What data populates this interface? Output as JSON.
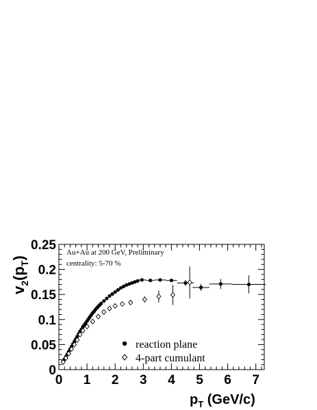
{
  "chart_data": {
    "type": "scatter",
    "xlabel": {
      "main": "p",
      "sub": "T",
      "rest": " (GeV/c)"
    },
    "ylabel": {
      "main": "v",
      "sub": "2",
      "open": "(p",
      "sub2": "T",
      "close": ")"
    },
    "xlim": [
      0,
      7.3
    ],
    "ylim": [
      0,
      0.25
    ],
    "x_ticks": [
      0,
      1,
      2,
      3,
      4,
      5,
      6,
      7
    ],
    "x_tick_labels": [
      "0",
      "1",
      "2",
      "3",
      "4",
      "5",
      "6",
      "7"
    ],
    "y_ticks": [
      0,
      0.05,
      0.1,
      0.15,
      0.2,
      0.25
    ],
    "y_tick_labels": [
      "0",
      "0.05",
      "0.1",
      "0.15",
      "0.2",
      "0.25"
    ],
    "annotations": [
      "Au+Au at 200 GeV, Preliminary",
      "centrality: 5-70 %"
    ],
    "legend_position": "bottom-center",
    "series": [
      {
        "name": "reaction plane",
        "marker": "filled-circle",
        "color": "#000000",
        "points": [
          {
            "x": 0.15,
            "y": 0.017
          },
          {
            "x": 0.2,
            "y": 0.021
          },
          {
            "x": 0.25,
            "y": 0.026
          },
          {
            "x": 0.3,
            "y": 0.031
          },
          {
            "x": 0.35,
            "y": 0.036
          },
          {
            "x": 0.4,
            "y": 0.041
          },
          {
            "x": 0.45,
            "y": 0.046
          },
          {
            "x": 0.5,
            "y": 0.051
          },
          {
            "x": 0.55,
            "y": 0.056
          },
          {
            "x": 0.6,
            "y": 0.061
          },
          {
            "x": 0.65,
            "y": 0.066
          },
          {
            "x": 0.7,
            "y": 0.071
          },
          {
            "x": 0.75,
            "y": 0.076
          },
          {
            "x": 0.8,
            "y": 0.08
          },
          {
            "x": 0.85,
            "y": 0.085
          },
          {
            "x": 0.9,
            "y": 0.089
          },
          {
            "x": 0.95,
            "y": 0.093
          },
          {
            "x": 1.0,
            "y": 0.097
          },
          {
            "x": 1.05,
            "y": 0.101
          },
          {
            "x": 1.1,
            "y": 0.105
          },
          {
            "x": 1.15,
            "y": 0.109
          },
          {
            "x": 1.2,
            "y": 0.113
          },
          {
            "x": 1.25,
            "y": 0.116
          },
          {
            "x": 1.3,
            "y": 0.12
          },
          {
            "x": 1.35,
            "y": 0.123
          },
          {
            "x": 1.4,
            "y": 0.126
          },
          {
            "x": 1.45,
            "y": 0.129
          },
          {
            "x": 1.5,
            "y": 0.132
          },
          {
            "x": 1.6,
            "y": 0.137
          },
          {
            "x": 1.7,
            "y": 0.142
          },
          {
            "x": 1.8,
            "y": 0.147
          },
          {
            "x": 1.9,
            "y": 0.151
          },
          {
            "x": 2.0,
            "y": 0.155
          },
          {
            "x": 2.1,
            "y": 0.159
          },
          {
            "x": 2.2,
            "y": 0.163
          },
          {
            "x": 2.3,
            "y": 0.166
          },
          {
            "x": 2.4,
            "y": 0.169
          },
          {
            "x": 2.5,
            "y": 0.171
          },
          {
            "x": 2.6,
            "y": 0.173
          },
          {
            "x": 2.7,
            "y": 0.175
          },
          {
            "x": 2.8,
            "y": 0.177
          },
          {
            "x": 2.95,
            "y": 0.179,
            "xerr": 0.15
          },
          {
            "x": 3.25,
            "y": 0.178,
            "xerr": 0.15
          },
          {
            "x": 3.6,
            "y": 0.179,
            "xerr": 0.2
          },
          {
            "x": 4.0,
            "y": 0.178,
            "xerr": 0.2
          },
          {
            "x": 4.5,
            "y": 0.173,
            "xerr": 0.3,
            "yerr": 0.006
          },
          {
            "x": 5.05,
            "y": 0.164,
            "xerr": 0.3,
            "yerr": 0.007
          },
          {
            "x": 5.75,
            "y": 0.171,
            "xerr": 0.4,
            "yerr": 0.01
          },
          {
            "x": 6.75,
            "y": 0.17,
            "xerr": 0.6,
            "yerr": 0.018
          }
        ]
      },
      {
        "name": "4-part cumulant",
        "marker": "open-diamond",
        "color": "#000000",
        "points": [
          {
            "x": 0.15,
            "y": 0.015
          },
          {
            "x": 0.25,
            "y": 0.023
          },
          {
            "x": 0.35,
            "y": 0.032
          },
          {
            "x": 0.45,
            "y": 0.041
          },
          {
            "x": 0.55,
            "y": 0.05
          },
          {
            "x": 0.65,
            "y": 0.059
          },
          {
            "x": 0.75,
            "y": 0.07
          },
          {
            "x": 0.85,
            "y": 0.078
          },
          {
            "x": 1.0,
            "y": 0.086
          },
          {
            "x": 1.2,
            "y": 0.096
          },
          {
            "x": 1.4,
            "y": 0.106
          },
          {
            "x": 1.6,
            "y": 0.115
          },
          {
            "x": 1.8,
            "y": 0.122
          },
          {
            "x": 2.0,
            "y": 0.127
          },
          {
            "x": 2.25,
            "y": 0.131
          },
          {
            "x": 2.55,
            "y": 0.134
          },
          {
            "x": 3.05,
            "y": 0.14,
            "yerr": 0.006
          },
          {
            "x": 3.55,
            "y": 0.146,
            "yerr": 0.012
          },
          {
            "x": 4.05,
            "y": 0.149,
            "yerr": 0.02
          },
          {
            "x": 4.65,
            "y": 0.174,
            "yerr": 0.032
          }
        ]
      }
    ]
  }
}
